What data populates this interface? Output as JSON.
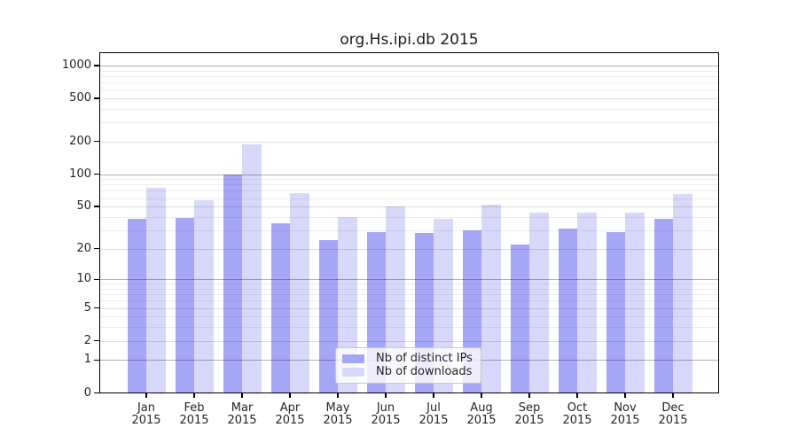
{
  "chart_data": {
    "type": "bar",
    "title": "org.Hs.ipi.db 2015",
    "categories": [
      "Jan",
      "Feb",
      "Mar",
      "Apr",
      "May",
      "Jun",
      "Jul",
      "Aug",
      "Sep",
      "Oct",
      "Nov",
      "Dec"
    ],
    "category_year": "2015",
    "series": [
      {
        "name": "Nb of distinct IPs",
        "key": "distinct-ips",
        "color": "#a6a6f7",
        "values": [
          38,
          39,
          100,
          35,
          24,
          29,
          28,
          30,
          22,
          31,
          29,
          38
        ]
      },
      {
        "name": "Nb of downloads",
        "key": "downloads",
        "color": "#d8d8fb",
        "values": [
          75,
          57,
          188,
          67,
          40,
          50,
          38,
          52,
          44,
          44,
          44,
          65
        ]
      }
    ],
    "y_scale": "log1p",
    "y_ticks": [
      0,
      1,
      2,
      5,
      10,
      20,
      50,
      100,
      200,
      500,
      1000
    ],
    "ylim": [
      0,
      1000
    ],
    "grid": true,
    "legend_position": "inside-bottom-center"
  }
}
